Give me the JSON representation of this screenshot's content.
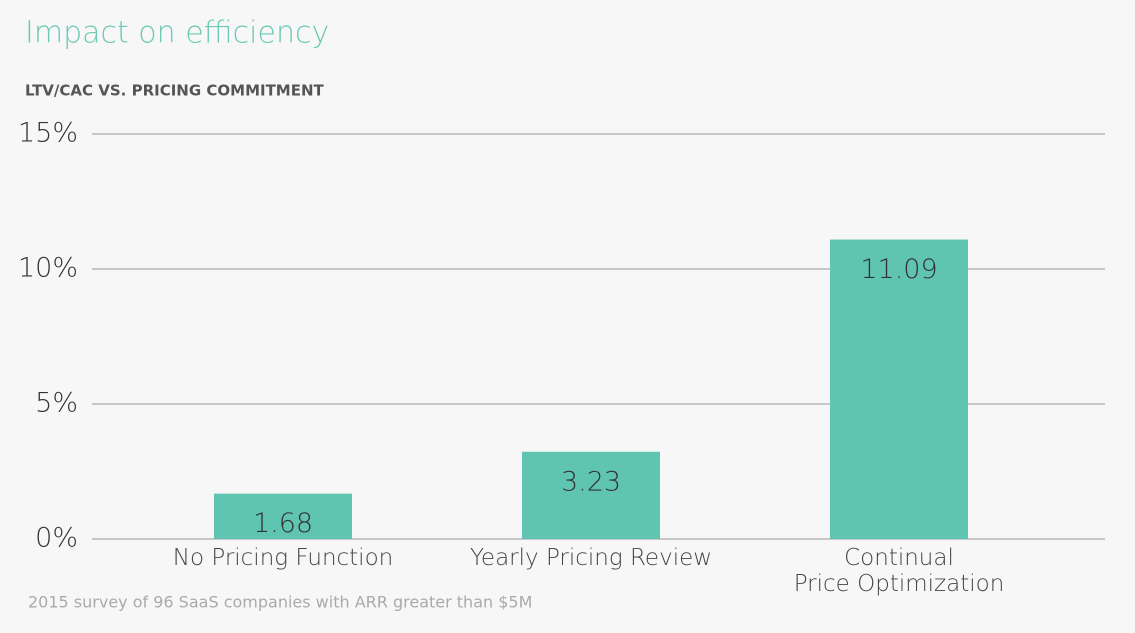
{
  "chart_data": {
    "type": "bar",
    "title": "Impact on efficiency",
    "subtitle": "LTV/CAC VS. PRICING COMMITMENT",
    "categories": [
      "No Pricing Function",
      "Yearly Pricing Review",
      "Continual\nPrice Optimization"
    ],
    "values": [
      1.68,
      3.23,
      11.09
    ],
    "color": "#5fc4b0",
    "ylim": [
      0,
      15
    ],
    "yticks": [
      {
        "value": 0,
        "label": "0%"
      },
      {
        "value": 5,
        "label": "5%"
      },
      {
        "value": 10,
        "label": "10%"
      },
      {
        "value": 15,
        "label": "15%"
      }
    ],
    "grid": true,
    "footnote": "2015 survey of 96 SaaS companies with ARR greater than $5M"
  }
}
